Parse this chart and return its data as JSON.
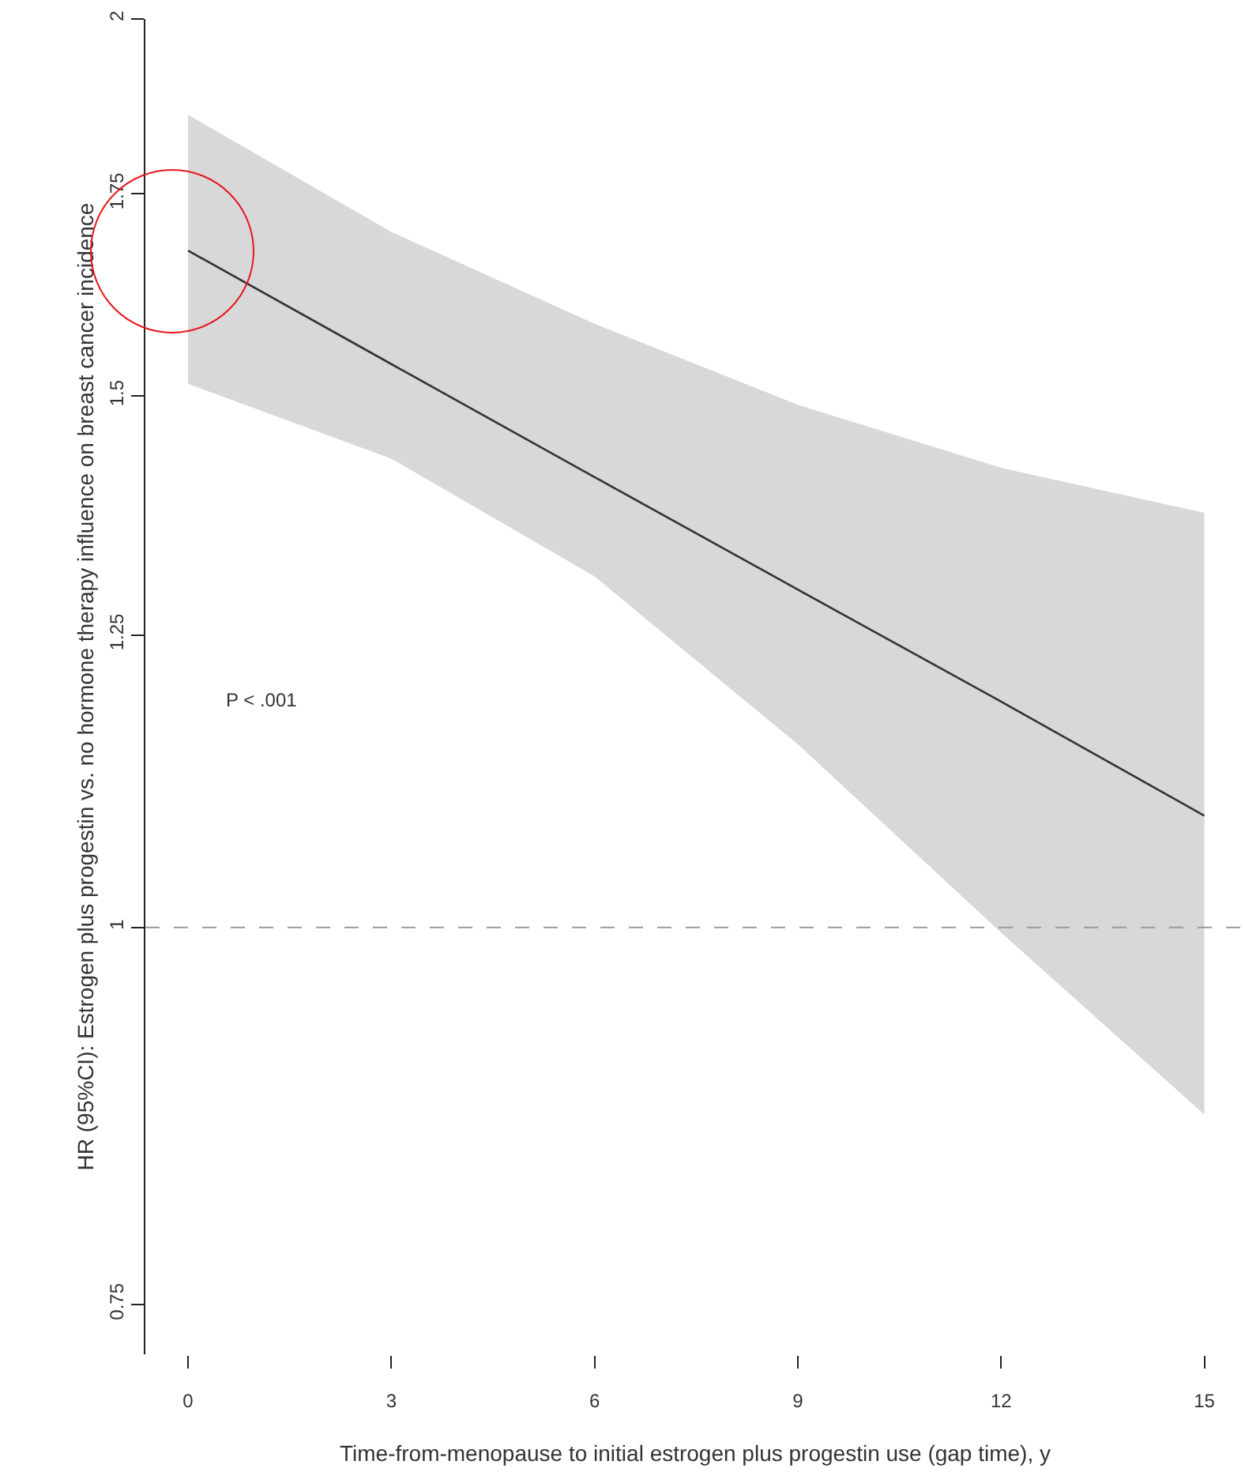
{
  "chart_data": {
    "type": "line",
    "xlabel": "Time-from-menopause to initial estrogen plus progestin use (gap time), y",
    "ylabel": "HR (95%CI): Estrogen plus progestin vs. no hormone therapy influence on breast cancer incidence",
    "x": [
      0,
      3,
      6,
      9,
      12,
      15
    ],
    "series": [
      {
        "color": "#333333",
        "values": [
          1.676,
          1.537,
          1.41,
          1.294,
          1.188,
          1.089
        ],
        "lower": [
          1.514,
          1.43,
          1.307,
          1.15,
          0.996,
          0.867
        ],
        "upper": [
          1.859,
          1.7,
          1.585,
          1.49,
          1.42,
          1.372
        ]
      }
    ],
    "log": "y",
    "xlim": [
      -0.63,
      15.6
    ],
    "ylim": [
      0.722,
      2
    ],
    "xticks": [
      0,
      3,
      6,
      9,
      12,
      15
    ],
    "yticks": [
      0.75,
      1,
      1.25,
      1.5,
      1.75,
      2
    ],
    "ref_lines": [
      {
        "axis": "y",
        "value": 1,
        "color": "#999999",
        "line_style": "dashed"
      }
    ],
    "annotations": [
      "P < .001"
    ],
    "grid": false,
    "legend": false,
    "marker": "none",
    "line_style": "solid"
  }
}
